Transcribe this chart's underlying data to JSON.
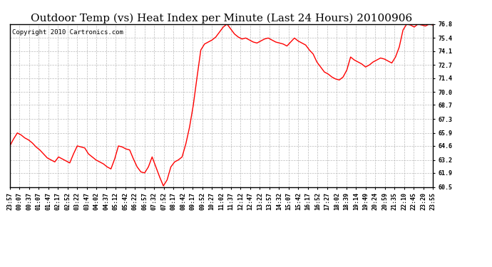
{
  "title": "Outdoor Temp (vs) Heat Index per Minute (Last 24 Hours) 20100906",
  "copyright_text": "Copyright 2010 Cartronics.com",
  "line_color": "#ff0000",
  "background_color": "#ffffff",
  "plot_background": "#ffffff",
  "grid_color": "#bbbbbb",
  "grid_style": "--",
  "yticks": [
    60.5,
    61.9,
    63.2,
    64.6,
    65.9,
    67.3,
    68.7,
    70.0,
    71.4,
    72.7,
    74.1,
    75.4,
    76.8
  ],
  "xtick_labels": [
    "23:57",
    "00:07",
    "00:37",
    "01:07",
    "01:47",
    "02:17",
    "02:52",
    "03:22",
    "03:47",
    "04:02",
    "04:37",
    "05:12",
    "05:42",
    "06:22",
    "06:57",
    "07:32",
    "07:52",
    "08:17",
    "08:42",
    "09:17",
    "09:52",
    "10:27",
    "11:02",
    "11:37",
    "12:12",
    "12:47",
    "13:22",
    "13:57",
    "14:32",
    "15:07",
    "15:42",
    "16:17",
    "16:52",
    "17:27",
    "18:02",
    "18:39",
    "19:14",
    "19:49",
    "20:24",
    "20:59",
    "21:35",
    "22:10",
    "22:45",
    "23:20",
    "23:55"
  ],
  "ymin": 60.5,
  "ymax": 76.8,
  "title_fontsize": 11,
  "copyright_fontsize": 6.5,
  "tick_fontsize": 6.0,
  "line_width": 1.0,
  "data_y": [
    64.6,
    65.3,
    65.9,
    65.7,
    65.4,
    65.2,
    64.9,
    64.5,
    64.2,
    63.8,
    63.4,
    63.2,
    63.0,
    63.5,
    63.3,
    63.1,
    62.9,
    63.8,
    64.6,
    64.5,
    64.4,
    63.8,
    63.5,
    63.2,
    63.0,
    62.8,
    62.5,
    62.3,
    63.3,
    64.6,
    64.5,
    64.3,
    64.2,
    63.3,
    62.5,
    62.0,
    61.9,
    62.5,
    63.5,
    62.5,
    61.5,
    60.6,
    61.2,
    62.5,
    63.0,
    63.2,
    63.5,
    64.8,
    66.5,
    68.7,
    71.5,
    74.2,
    74.8,
    75.0,
    75.2,
    75.5,
    76.0,
    76.5,
    76.8,
    76.3,
    75.8,
    75.5,
    75.3,
    75.4,
    75.2,
    75.0,
    74.9,
    75.1,
    75.3,
    75.4,
    75.2,
    75.0,
    74.9,
    74.8,
    74.6,
    75.0,
    75.4,
    75.1,
    74.9,
    74.7,
    74.2,
    73.8,
    73.0,
    72.5,
    72.0,
    71.8,
    71.5,
    71.3,
    71.2,
    71.5,
    72.2,
    73.5,
    73.2,
    73.0,
    72.8,
    72.5,
    72.7,
    73.0,
    73.2,
    73.4,
    73.3,
    73.1,
    72.9,
    73.5,
    74.5,
    76.2,
    76.8,
    76.7,
    76.5,
    76.8,
    76.7,
    76.6,
    76.8,
    76.7
  ]
}
